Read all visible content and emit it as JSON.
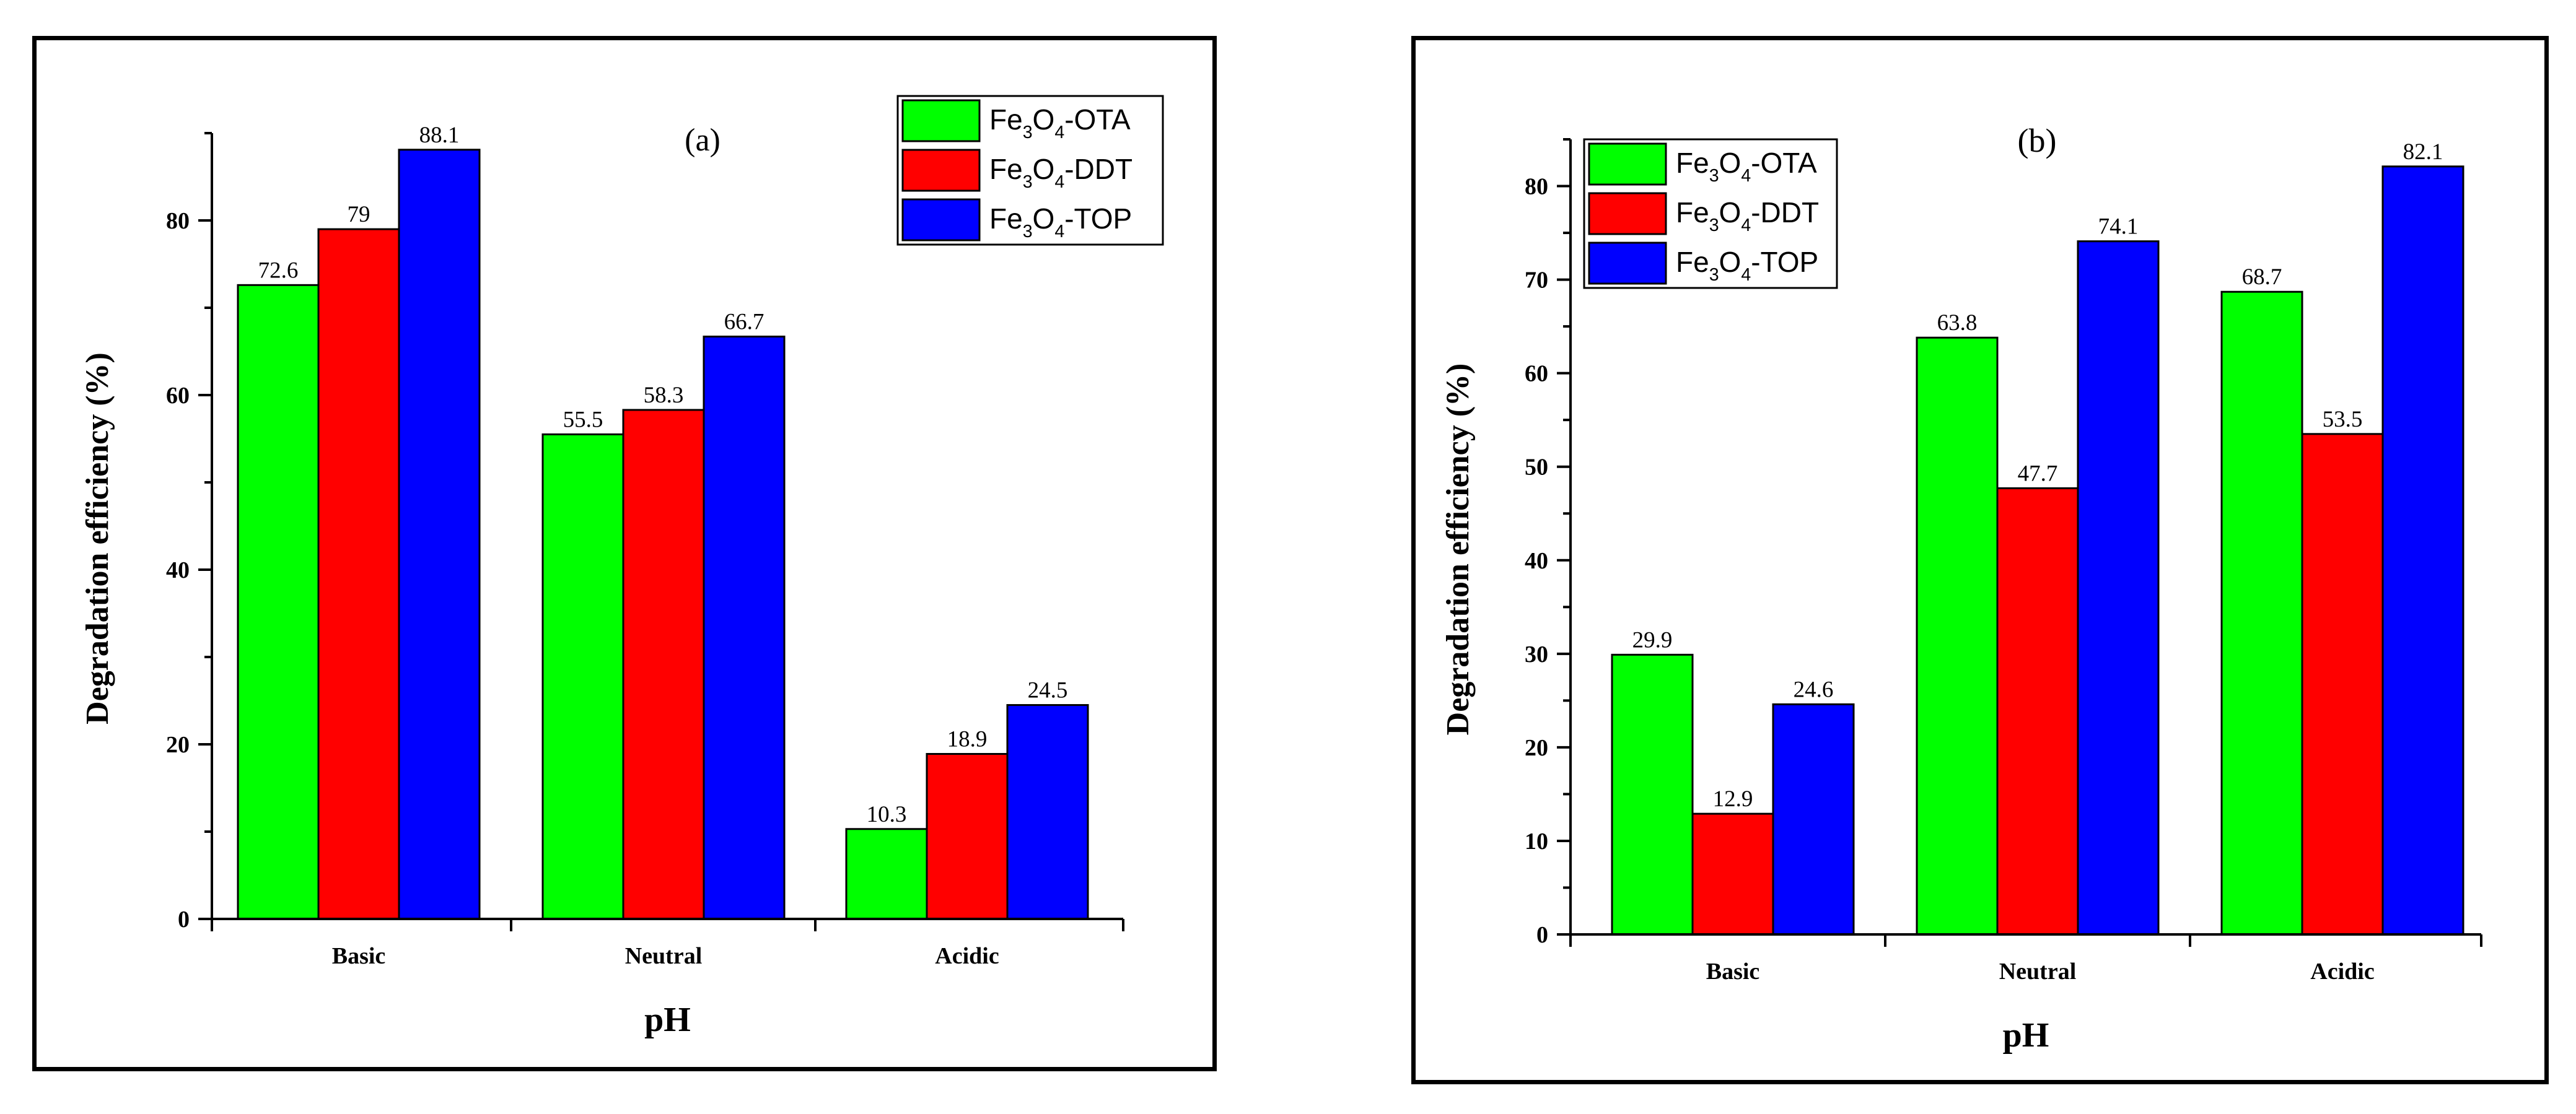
{
  "colors": {
    "Fe3O4-OTA": "#00ff00",
    "Fe3O4-DDT": "#ff0000",
    "Fe3O4-TOP": "#0000ff"
  },
  "chart_data": [
    {
      "type": "bar",
      "title": "(a)",
      "xlabel": "pH",
      "ylabel": "Degradation efficiency (%)",
      "categories": [
        "Basic",
        "Neutral",
        "Acidic"
      ],
      "ylim": [
        0,
        90
      ],
      "yticks": [
        0,
        20,
        40,
        60,
        80
      ],
      "minor_step": 10,
      "legend_position": "top-right",
      "series": [
        {
          "key": "Fe3O4-OTA",
          "name": "Fe3O4-OTA",
          "base": "Fe",
          "sub1": "3",
          "mid": "O",
          "sub2": "4",
          "suffix": "-OTA",
          "values": [
            72.6,
            55.5,
            10.3
          ],
          "labels": [
            "72.6",
            "55.5",
            "10.3"
          ]
        },
        {
          "key": "Fe3O4-DDT",
          "name": "Fe3O4-DDT",
          "base": "Fe",
          "sub1": "3",
          "mid": "O",
          "sub2": "4",
          "suffix": "-DDT",
          "values": [
            79,
            58.3,
            18.9
          ],
          "labels": [
            "79",
            "58.3",
            "18.9"
          ]
        },
        {
          "key": "Fe3O4-TOP",
          "name": "Fe3O4-TOP",
          "base": "Fe",
          "sub1": "3",
          "mid": "O",
          "sub2": "4",
          "suffix": "-TOP",
          "values": [
            88.1,
            66.7,
            24.5
          ],
          "labels": [
            "88.1",
            "66.7",
            "24.5"
          ]
        }
      ]
    },
    {
      "type": "bar",
      "title": "(b)",
      "xlabel": "pH",
      "ylabel": "Degradation efficiency (%)",
      "categories": [
        "Basic",
        "Neutral",
        "Acidic"
      ],
      "ylim": [
        0,
        85
      ],
      "yticks": [
        0,
        10,
        20,
        30,
        40,
        50,
        60,
        70,
        80
      ],
      "minor_step": 5,
      "legend_position": "top-left",
      "series": [
        {
          "key": "Fe3O4-OTA",
          "name": "Fe3O4-OTA",
          "base": "Fe",
          "sub1": "3",
          "mid": "O",
          "sub2": "4",
          "suffix": "-OTA",
          "values": [
            29.9,
            63.8,
            68.7
          ],
          "labels": [
            "29.9",
            "63.8",
            "68.7"
          ]
        },
        {
          "key": "Fe3O4-DDT",
          "name": "Fe3O4-DDT",
          "base": "Fe",
          "sub1": "3",
          "mid": "O",
          "sub2": "4",
          "suffix": "-DDT",
          "values": [
            12.9,
            47.7,
            53.5
          ],
          "labels": [
            "12.9",
            "47.7",
            "53.5"
          ]
        },
        {
          "key": "Fe3O4-TOP",
          "name": "Fe3O4-TOP",
          "base": "Fe",
          "sub1": "3",
          "mid": "O",
          "sub2": "4",
          "suffix": "-TOP",
          "values": [
            24.6,
            74.1,
            82.1
          ],
          "labels": [
            "24.6",
            "74.1",
            "82.1"
          ]
        }
      ]
    }
  ]
}
